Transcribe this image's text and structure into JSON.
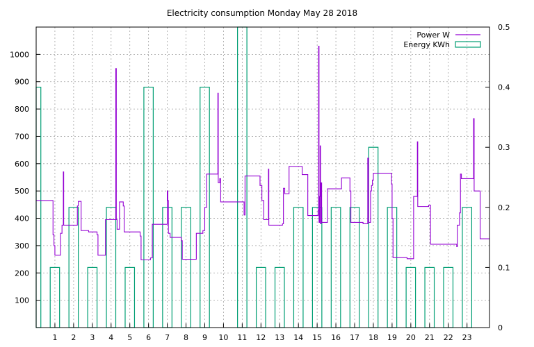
{
  "chart_data": {
    "type": "line",
    "title": "Electricity consumption Monday May 28 2018",
    "xlabel": "",
    "ylabel": "",
    "y2label": "",
    "grid": true,
    "legend_position": "top-right",
    "x_ticks": [
      "1",
      "2",
      "3",
      "4",
      "5",
      "6",
      "7",
      "8",
      "9",
      "10",
      "11",
      "12",
      "13",
      "14",
      "15",
      "16",
      "17",
      "18",
      "19",
      "20",
      "21",
      "22",
      "23"
    ],
    "xlim": [
      0,
      24.2
    ],
    "ylim": [
      0,
      1100
    ],
    "y_ticks": [
      100,
      200,
      300,
      400,
      500,
      600,
      700,
      800,
      900,
      1000
    ],
    "y2lim": [
      0,
      0.5
    ],
    "y2_ticks": [
      "0",
      "0.1",
      "0.2",
      "0.3",
      "0.4",
      "0.5"
    ],
    "colors": {
      "power": "#9400d3",
      "energy": "#009e73"
    },
    "series": [
      {
        "name": "Power W",
        "type": "step",
        "axis": "left",
        "points": [
          [
            0.0,
            465
          ],
          [
            0.9,
            465
          ],
          [
            0.9,
            340
          ],
          [
            0.95,
            340
          ],
          [
            0.95,
            300
          ],
          [
            1.0,
            300
          ],
          [
            1.0,
            265
          ],
          [
            1.3,
            265
          ],
          [
            1.3,
            345
          ],
          [
            1.38,
            345
          ],
          [
            1.38,
            375
          ],
          [
            1.45,
            375
          ],
          [
            1.45,
            570
          ],
          [
            1.47,
            570
          ],
          [
            1.47,
            375
          ],
          [
            2.2,
            375
          ],
          [
            2.2,
            445
          ],
          [
            2.25,
            445
          ],
          [
            2.25,
            462
          ],
          [
            2.4,
            462
          ],
          [
            2.4,
            355
          ],
          [
            2.8,
            355
          ],
          [
            2.8,
            350
          ],
          [
            3.25,
            350
          ],
          [
            3.25,
            340
          ],
          [
            3.3,
            340
          ],
          [
            3.3,
            265
          ],
          [
            3.7,
            265
          ],
          [
            3.7,
            395
          ],
          [
            4.25,
            395
          ],
          [
            4.25,
            948
          ],
          [
            4.28,
            948
          ],
          [
            4.28,
            395
          ],
          [
            4.32,
            395
          ],
          [
            4.32,
            360
          ],
          [
            4.45,
            360
          ],
          [
            4.45,
            460
          ],
          [
            4.65,
            460
          ],
          [
            4.65,
            445
          ],
          [
            4.7,
            445
          ],
          [
            4.7,
            350
          ],
          [
            5.55,
            350
          ],
          [
            5.55,
            335
          ],
          [
            5.6,
            335
          ],
          [
            5.6,
            248
          ],
          [
            6.1,
            248
          ],
          [
            6.1,
            255
          ],
          [
            6.2,
            255
          ],
          [
            6.2,
            378
          ],
          [
            7.0,
            378
          ],
          [
            7.0,
            500
          ],
          [
            7.03,
            500
          ],
          [
            7.03,
            465
          ],
          [
            7.06,
            465
          ],
          [
            7.06,
            345
          ],
          [
            7.15,
            345
          ],
          [
            7.15,
            330
          ],
          [
            7.75,
            330
          ],
          [
            7.75,
            318
          ],
          [
            7.8,
            318
          ],
          [
            7.8,
            250
          ],
          [
            8.55,
            250
          ],
          [
            8.55,
            345
          ],
          [
            8.9,
            345
          ],
          [
            8.9,
            355
          ],
          [
            9.0,
            355
          ],
          [
            9.0,
            440
          ],
          [
            9.1,
            440
          ],
          [
            9.1,
            562
          ],
          [
            9.7,
            562
          ],
          [
            9.7,
            858
          ],
          [
            9.72,
            858
          ],
          [
            9.72,
            530
          ],
          [
            9.8,
            530
          ],
          [
            9.8,
            545
          ],
          [
            9.85,
            545
          ],
          [
            9.85,
            460
          ],
          [
            11.1,
            460
          ],
          [
            11.1,
            412
          ],
          [
            11.15,
            412
          ],
          [
            11.15,
            555
          ],
          [
            11.95,
            555
          ],
          [
            11.95,
            520
          ],
          [
            12.05,
            520
          ],
          [
            12.05,
            465
          ],
          [
            12.15,
            465
          ],
          [
            12.15,
            395
          ],
          [
            12.4,
            395
          ],
          [
            12.4,
            580
          ],
          [
            12.42,
            580
          ],
          [
            12.42,
            375
          ],
          [
            13.15,
            375
          ],
          [
            13.15,
            380
          ],
          [
            13.2,
            380
          ],
          [
            13.2,
            510
          ],
          [
            13.27,
            510
          ],
          [
            13.27,
            490
          ],
          [
            13.5,
            490
          ],
          [
            13.5,
            590
          ],
          [
            14.2,
            590
          ],
          [
            14.2,
            560
          ],
          [
            14.5,
            560
          ],
          [
            14.5,
            410
          ],
          [
            15.05,
            410
          ],
          [
            15.05,
            430
          ],
          [
            15.08,
            430
          ],
          [
            15.08,
            1030
          ],
          [
            15.1,
            1030
          ],
          [
            15.1,
            385
          ],
          [
            15.13,
            385
          ],
          [
            15.13,
            480
          ],
          [
            15.16,
            480
          ],
          [
            15.16,
            665
          ],
          [
            15.18,
            665
          ],
          [
            15.18,
            380
          ],
          [
            15.21,
            380
          ],
          [
            15.21,
            530
          ],
          [
            15.24,
            530
          ],
          [
            15.24,
            385
          ],
          [
            15.55,
            385
          ],
          [
            15.55,
            508
          ],
          [
            16.3,
            508
          ],
          [
            16.3,
            548
          ],
          [
            16.75,
            548
          ],
          [
            16.75,
            500
          ],
          [
            16.8,
            500
          ],
          [
            16.8,
            385
          ],
          [
            17.45,
            385
          ],
          [
            17.45,
            380
          ],
          [
            17.7,
            380
          ],
          [
            17.7,
            620
          ],
          [
            17.75,
            620
          ],
          [
            17.75,
            385
          ],
          [
            17.85,
            385
          ],
          [
            17.85,
            500
          ],
          [
            17.9,
            500
          ],
          [
            17.9,
            520
          ],
          [
            17.95,
            520
          ],
          [
            17.95,
            540
          ],
          [
            18.0,
            540
          ],
          [
            18.0,
            565
          ],
          [
            18.97,
            565
          ],
          [
            18.97,
            525
          ],
          [
            19.0,
            525
          ],
          [
            19.0,
            400
          ],
          [
            19.05,
            400
          ],
          [
            19.05,
            256
          ],
          [
            19.8,
            256
          ],
          [
            19.8,
            252
          ],
          [
            20.15,
            252
          ],
          [
            20.15,
            480
          ],
          [
            20.35,
            480
          ],
          [
            20.35,
            680
          ],
          [
            20.37,
            680
          ],
          [
            20.37,
            443
          ],
          [
            20.95,
            443
          ],
          [
            20.95,
            448
          ],
          [
            21.05,
            448
          ],
          [
            21.05,
            305
          ],
          [
            22.45,
            305
          ],
          [
            22.45,
            296
          ],
          [
            22.48,
            296
          ],
          [
            22.48,
            375
          ],
          [
            22.6,
            375
          ],
          [
            22.6,
            420
          ],
          [
            22.65,
            420
          ],
          [
            22.65,
            562
          ],
          [
            22.7,
            562
          ],
          [
            22.7,
            545
          ],
          [
            23.35,
            545
          ],
          [
            23.35,
            765
          ],
          [
            23.38,
            765
          ],
          [
            23.38,
            500
          ],
          [
            23.7,
            500
          ],
          [
            23.7,
            325
          ],
          [
            24.2,
            325
          ]
        ]
      },
      {
        "name": "Energy KWh",
        "type": "bars",
        "axis": "right",
        "bars": [
          [
            0.0,
            0.25,
            0.4
          ],
          [
            0.75,
            1.25,
            0.1
          ],
          [
            1.75,
            2.25,
            0.2
          ],
          [
            2.75,
            3.25,
            0.1
          ],
          [
            3.75,
            4.25,
            0.2
          ],
          [
            4.75,
            5.25,
            0.1
          ],
          [
            5.75,
            6.25,
            0.4
          ],
          [
            6.75,
            7.25,
            0.2
          ],
          [
            7.75,
            8.25,
            0.2
          ],
          [
            8.75,
            9.25,
            0.4
          ],
          [
            10.75,
            11.25,
            0.5
          ],
          [
            11.75,
            12.25,
            0.1
          ],
          [
            12.75,
            13.25,
            0.1
          ],
          [
            13.75,
            14.25,
            0.2
          ],
          [
            14.75,
            15.25,
            0.2
          ],
          [
            15.75,
            16.25,
            0.2
          ],
          [
            16.75,
            17.25,
            0.2
          ],
          [
            17.75,
            18.25,
            0.3
          ],
          [
            18.75,
            19.25,
            0.2
          ],
          [
            19.75,
            20.25,
            0.1
          ],
          [
            20.75,
            21.25,
            0.1
          ],
          [
            21.75,
            22.25,
            0.1
          ],
          [
            22.75,
            23.25,
            0.2
          ]
        ]
      }
    ]
  }
}
